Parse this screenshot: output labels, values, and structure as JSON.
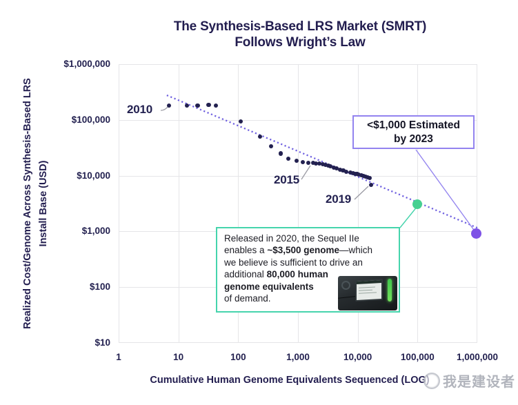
{
  "title": {
    "line1": "The Synthesis-Based LRS Market (SMRT)",
    "line2": "Follows Wright’s Law"
  },
  "chart_data": {
    "type": "scatter",
    "title": "The Synthesis-Based LRS Market (SMRT) Follows Wright’s Law",
    "xlabel": "Cumulative Human Genome Equivalents Sequenced (LOG)",
    "ylabel": "Realized Cost/Genome Across Synthesis-Based LRS Install Base (USD)",
    "ylabel_lines": [
      "Realized Cost/Genome Across Synthesis-Based LRS",
      "Install Base (USD)"
    ],
    "x_scale": "log",
    "y_scale": "log",
    "xlim": [
      1,
      1000000
    ],
    "ylim": [
      10,
      1000000
    ],
    "grid": true,
    "x_tick_values": [
      1,
      10,
      100,
      1000,
      10000,
      100000,
      1000000
    ],
    "x_tick_labels": [
      "1",
      "10",
      "100",
      "1,000",
      "10,000",
      "100,000",
      "1,000,000"
    ],
    "y_tick_values": [
      10,
      100,
      1000,
      10000,
      100000,
      1000000
    ],
    "y_tick_labels": [
      "$10",
      "$100",
      "$1,000",
      "$10,000",
      "$100,000",
      "$1,000,000"
    ],
    "series": [
      {
        "name": "SMRT realized cost per genome",
        "color": "#232150",
        "marker_radius": 3.1,
        "points": [
          [
            7,
            181000
          ],
          [
            14,
            181000
          ],
          [
            21,
            181000
          ],
          [
            32,
            186000
          ],
          [
            42,
            181000
          ],
          [
            110,
            94000
          ],
          [
            230,
            50000
          ],
          [
            355,
            34000
          ],
          [
            520,
            25000
          ],
          [
            690,
            20000
          ],
          [
            950,
            18500
          ],
          [
            1200,
            17500
          ],
          [
            1500,
            17000
          ],
          [
            1800,
            17000
          ],
          [
            2000,
            16500
          ],
          [
            2300,
            16500
          ],
          [
            2600,
            16100
          ],
          [
            2900,
            15600
          ],
          [
            3200,
            15200
          ],
          [
            3500,
            14700
          ],
          [
            4000,
            13900
          ],
          [
            4400,
            13500
          ],
          [
            5100,
            12800
          ],
          [
            5700,
            12400
          ],
          [
            6400,
            11700
          ],
          [
            7500,
            11400
          ],
          [
            8400,
            11100
          ],
          [
            9000,
            10800
          ],
          [
            9700,
            10800
          ],
          [
            10400,
            10500
          ],
          [
            11500,
            10200
          ],
          [
            12500,
            9900
          ],
          [
            13500,
            9600
          ],
          [
            14600,
            9300
          ],
          [
            15800,
            9100
          ],
          [
            16700,
            6800
          ]
        ]
      },
      {
        "name": "Sequel IIe released 2020 (~$3,500 genome)",
        "color": "#46d091",
        "marker_radius": 7,
        "points": [
          [
            100000,
            3100
          ]
        ]
      },
      {
        "name": "<$1,000 estimated by 2023",
        "color": "#7e52e6",
        "marker_radius": 7.5,
        "points": [
          [
            950000,
            920
          ]
        ]
      }
    ],
    "trend_line": {
      "style": "dotted",
      "color": "#7061e0",
      "x1": 6.4,
      "y1": 277000,
      "x2": 1020000,
      "y2": 1150
    },
    "point_labels": [
      {
        "label": "2010",
        "x": 7,
        "y": 181000
      },
      {
        "label": "2015",
        "x": 1500,
        "y": 17000
      },
      {
        "label": "2019",
        "x": 16700,
        "y": 6800
      }
    ]
  },
  "callout_estimate": {
    "line1": "<$1,000 Estimated",
    "line2": "by 2023",
    "border_color": "#9283ef"
  },
  "callout_sequel": {
    "border_color": "#45d4ac",
    "segments": [
      {
        "t": "Released in 2020, the Sequel IIe",
        "b": false,
        "br": true
      },
      {
        "t": "enables a ",
        "b": false,
        "br": false
      },
      {
        "t": "~$3,500 genome",
        "b": true,
        "br": false
      },
      {
        "t": "—which",
        "b": false,
        "br": true
      },
      {
        "t": "we believe is sufficient to drive an",
        "b": false,
        "br": true
      },
      {
        "t": "additional ",
        "b": false,
        "br": false
      },
      {
        "t": "80,000 human",
        "b": true,
        "br": true
      },
      {
        "t": "genome equivalents",
        "b": true,
        "br": true
      },
      {
        "t": "of demand.",
        "b": false,
        "br": false
      }
    ],
    "device_name": "Sequel IIe sequencer photo"
  },
  "watermark": {
    "text": "我是建设者"
  }
}
